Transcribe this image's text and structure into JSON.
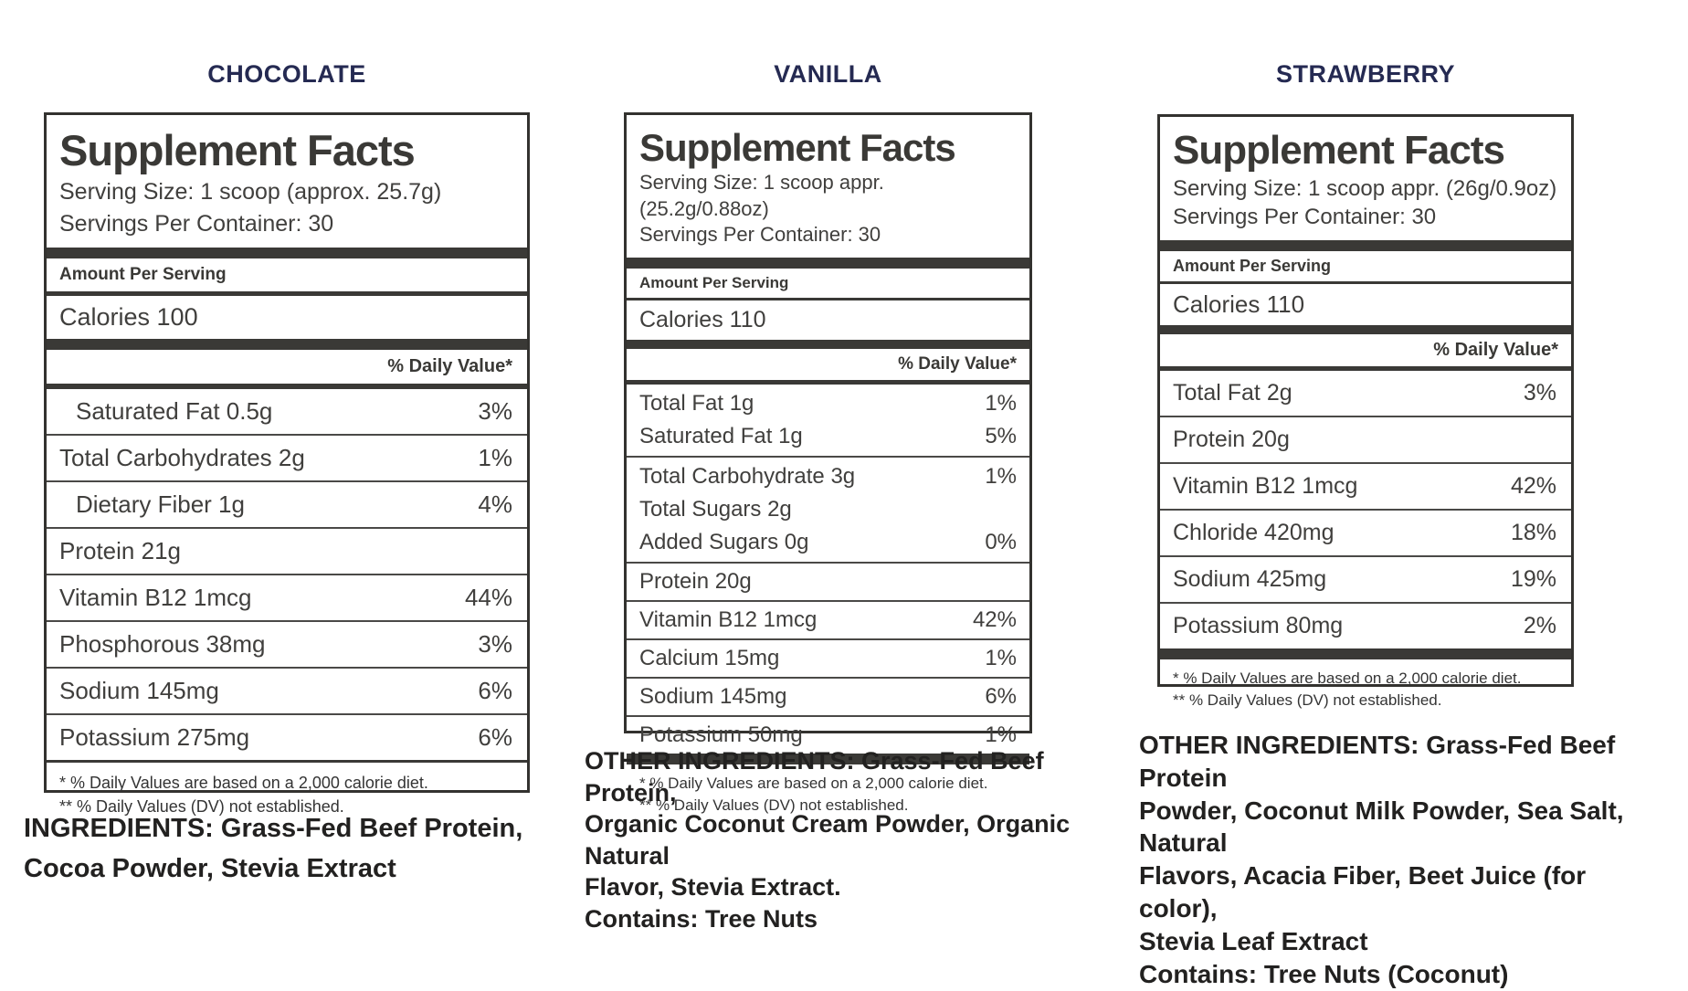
{
  "colors": {
    "flavor_title_navy": "#252a52",
    "panel_bar_charcoal": "#3a3936",
    "panel_border": "#33322f",
    "body_text": "#403f3d",
    "background": "#ffffff"
  },
  "panels": [
    {
      "flavor": "CHOCOLATE",
      "sf_title": "Supplement Facts",
      "serving_size": "Serving Size: 1 scoop (approx. 25.7g)",
      "servings": "Servings Per Container: 30",
      "amount_per_serving": "Amount Per Serving",
      "calories": "Calories 100",
      "dv_header": "% Daily Value*",
      "rows": [
        {
          "label": "Saturated Fat 0.5g",
          "value": "3%"
        },
        {
          "label": "Total Carbohydrates 2g",
          "value": "1%"
        },
        {
          "label": "Dietary Fiber 1g",
          "value": "4%"
        },
        {
          "label": "Protein 21g",
          "value": ""
        },
        {
          "label": "Vitamin B12 1mcg",
          "value": "44%"
        },
        {
          "label": "Phosphorous 38mg",
          "value": "3%"
        },
        {
          "label": "Sodium 145mg",
          "value": "6%"
        },
        {
          "label": "Potassium 275mg",
          "value": "6%"
        }
      ],
      "footnote1": "* % Daily Values are based on a 2,000 calorie diet.",
      "footnote2": "** % Daily Values (DV) not established.",
      "ingredients_lines": [
        "INGREDIENTS: Grass-Fed Beef Protein,",
        "Cocoa Powder, Stevia Extract"
      ]
    },
    {
      "flavor": "VANILLA",
      "sf_title": "Supplement Facts",
      "serving_size": "Serving Size: 1 scoop appr. (25.2g/0.88oz)",
      "servings": "Servings Per Container: 30",
      "amount_per_serving": "Amount Per Serving",
      "calories": "Calories 110",
      "dv_header": "% Daily Value*",
      "rows": [
        {
          "label": "Total Fat 1g",
          "value": "1%"
        },
        {
          "label": "Saturated Fat 1g",
          "value": "5%"
        },
        {
          "label": "Total Carbohydrate 3g",
          "value": "1%"
        },
        {
          "label": "Total Sugars 2g",
          "value": ""
        },
        {
          "label": "Added Sugars 0g",
          "value": "0%"
        },
        {
          "label": "Protein 20g",
          "value": ""
        },
        {
          "label": "Vitamin B12 1mcg",
          "value": "42%"
        },
        {
          "label": "Calcium 15mg",
          "value": "1%"
        },
        {
          "label": "Sodium 145mg",
          "value": "6%"
        },
        {
          "label": "Potassium 50mg",
          "value": "1%"
        }
      ],
      "footnote1": "* % Daily Values are based on a 2,000 calorie diet.",
      "footnote2": "** % Daily Values (DV) not established.",
      "ingredients_lines": [
        "OTHER INGREDIENTS: Grass-Fed Beef Protein,",
        "Organic Coconut Cream Powder, Organic Natural",
        "Flavor, Stevia Extract.",
        "Contains: Tree Nuts"
      ]
    },
    {
      "flavor": "STRAWBERRY",
      "sf_title": "Supplement Facts",
      "serving_size": "Serving Size: 1 scoop appr. (26g/0.9oz)",
      "servings": "Servings Per Container: 30",
      "amount_per_serving": "Amount Per Serving",
      "calories": "Calories 110",
      "dv_header": "% Daily Value*",
      "rows": [
        {
          "label": "Total Fat 2g",
          "value": "3%"
        },
        {
          "label": "Protein 20g",
          "value": ""
        },
        {
          "label": "Vitamin B12 1mcg",
          "value": "42%"
        },
        {
          "label": "Chloride 420mg",
          "value": "18%"
        },
        {
          "label": "Sodium 425mg",
          "value": "19%"
        },
        {
          "label": "Potassium 80mg",
          "value": "2%"
        }
      ],
      "footnote1": "* % Daily Values are based on a 2,000 calorie diet.",
      "footnote2": "** % Daily Values (DV) not established.",
      "ingredients_lines": [
        "OTHER INGREDIENTS: Grass-Fed Beef Protein",
        "Powder, Coconut Milk Powder, Sea Salt, Natural",
        "Flavors, Acacia Fiber, Beet Juice (for color),",
        "Stevia Leaf Extract",
        "Contains: Tree Nuts (Coconut)"
      ]
    }
  ]
}
